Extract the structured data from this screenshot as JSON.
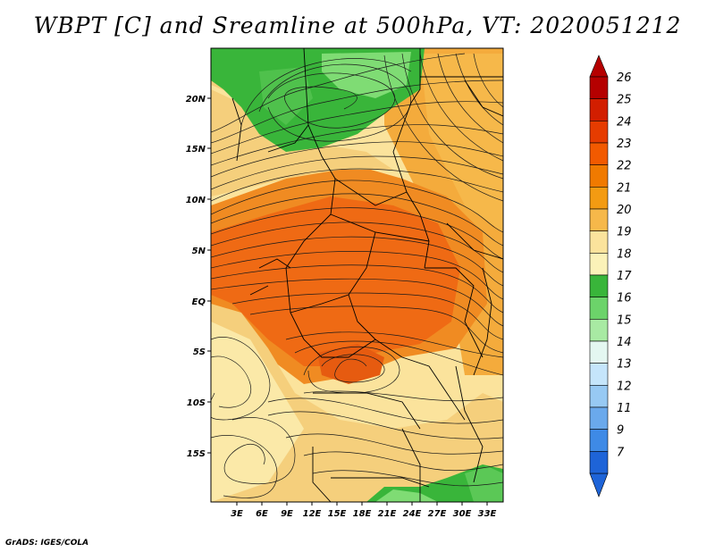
{
  "title": "WBPT [C] and Sreamline at 500hPa, VT: 2020051212",
  "footer": "GrADS: IGES/COLA",
  "map": {
    "lat_labels": [
      "20N",
      "15N",
      "10N",
      "5N",
      "EQ",
      "5S",
      "10S",
      "15S"
    ],
    "lon_labels": [
      "3E",
      "6E",
      "9E",
      "12E",
      "15E",
      "18E",
      "21E",
      "24E",
      "27E",
      "30E",
      "33E"
    ]
  },
  "colorbar": {
    "labels": [
      "26",
      "25",
      "24",
      "23",
      "22",
      "21",
      "20",
      "19",
      "18",
      "17",
      "16",
      "15",
      "14",
      "13",
      "12",
      "11",
      "9",
      "7"
    ],
    "colors": [
      "#b50000",
      "#d21e00",
      "#e63c00",
      "#f25a00",
      "#f07a00",
      "#f39b12",
      "#f6b84a",
      "#fbe39c",
      "#fbf2b8",
      "#39b53a",
      "#6cd36a",
      "#a8eaa3",
      "#e4f7f1",
      "#c5e5fb",
      "#97c9f3",
      "#6aa9ec",
      "#3e8ae6",
      "#1e64d8"
    ]
  },
  "colors": {
    "green_dark": "#39b53a",
    "green_light": "#7fdc74",
    "yellow": "#fbe9a8",
    "tan": "#f5cf7c",
    "orange_light": "#f4ab3c",
    "orange": "#f08b22",
    "red_orange": "#ef6a14"
  }
}
